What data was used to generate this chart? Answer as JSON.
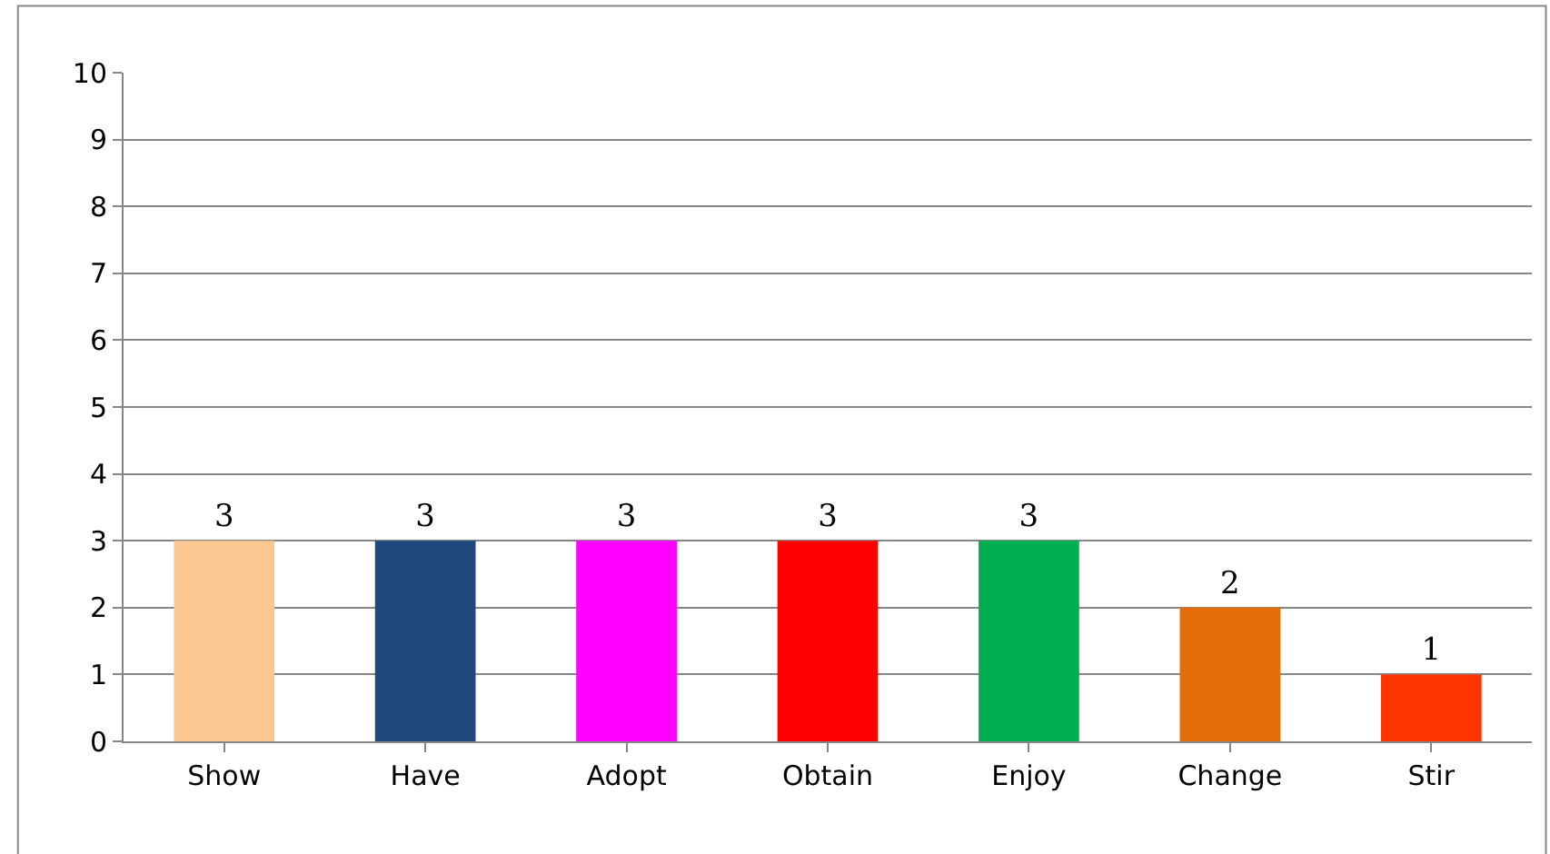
{
  "chart_data": {
    "type": "bar",
    "categories": [
      "Show",
      "Have",
      "Adopt",
      "Obtain",
      "Enjoy",
      "Change",
      "Stir"
    ],
    "values": [
      3,
      3,
      3,
      3,
      3,
      2,
      1
    ],
    "colors": [
      "#fac791",
      "#1f497d",
      "#ff00ff",
      "#ff0000",
      "#00b050",
      "#e46c0a",
      "#ff3300"
    ],
    "ylim": [
      0,
      10
    ],
    "yticks": [
      0,
      1,
      2,
      3,
      4,
      5,
      6,
      7,
      8,
      9,
      10
    ],
    "grid": "y",
    "data_labels": true,
    "legend": false
  }
}
